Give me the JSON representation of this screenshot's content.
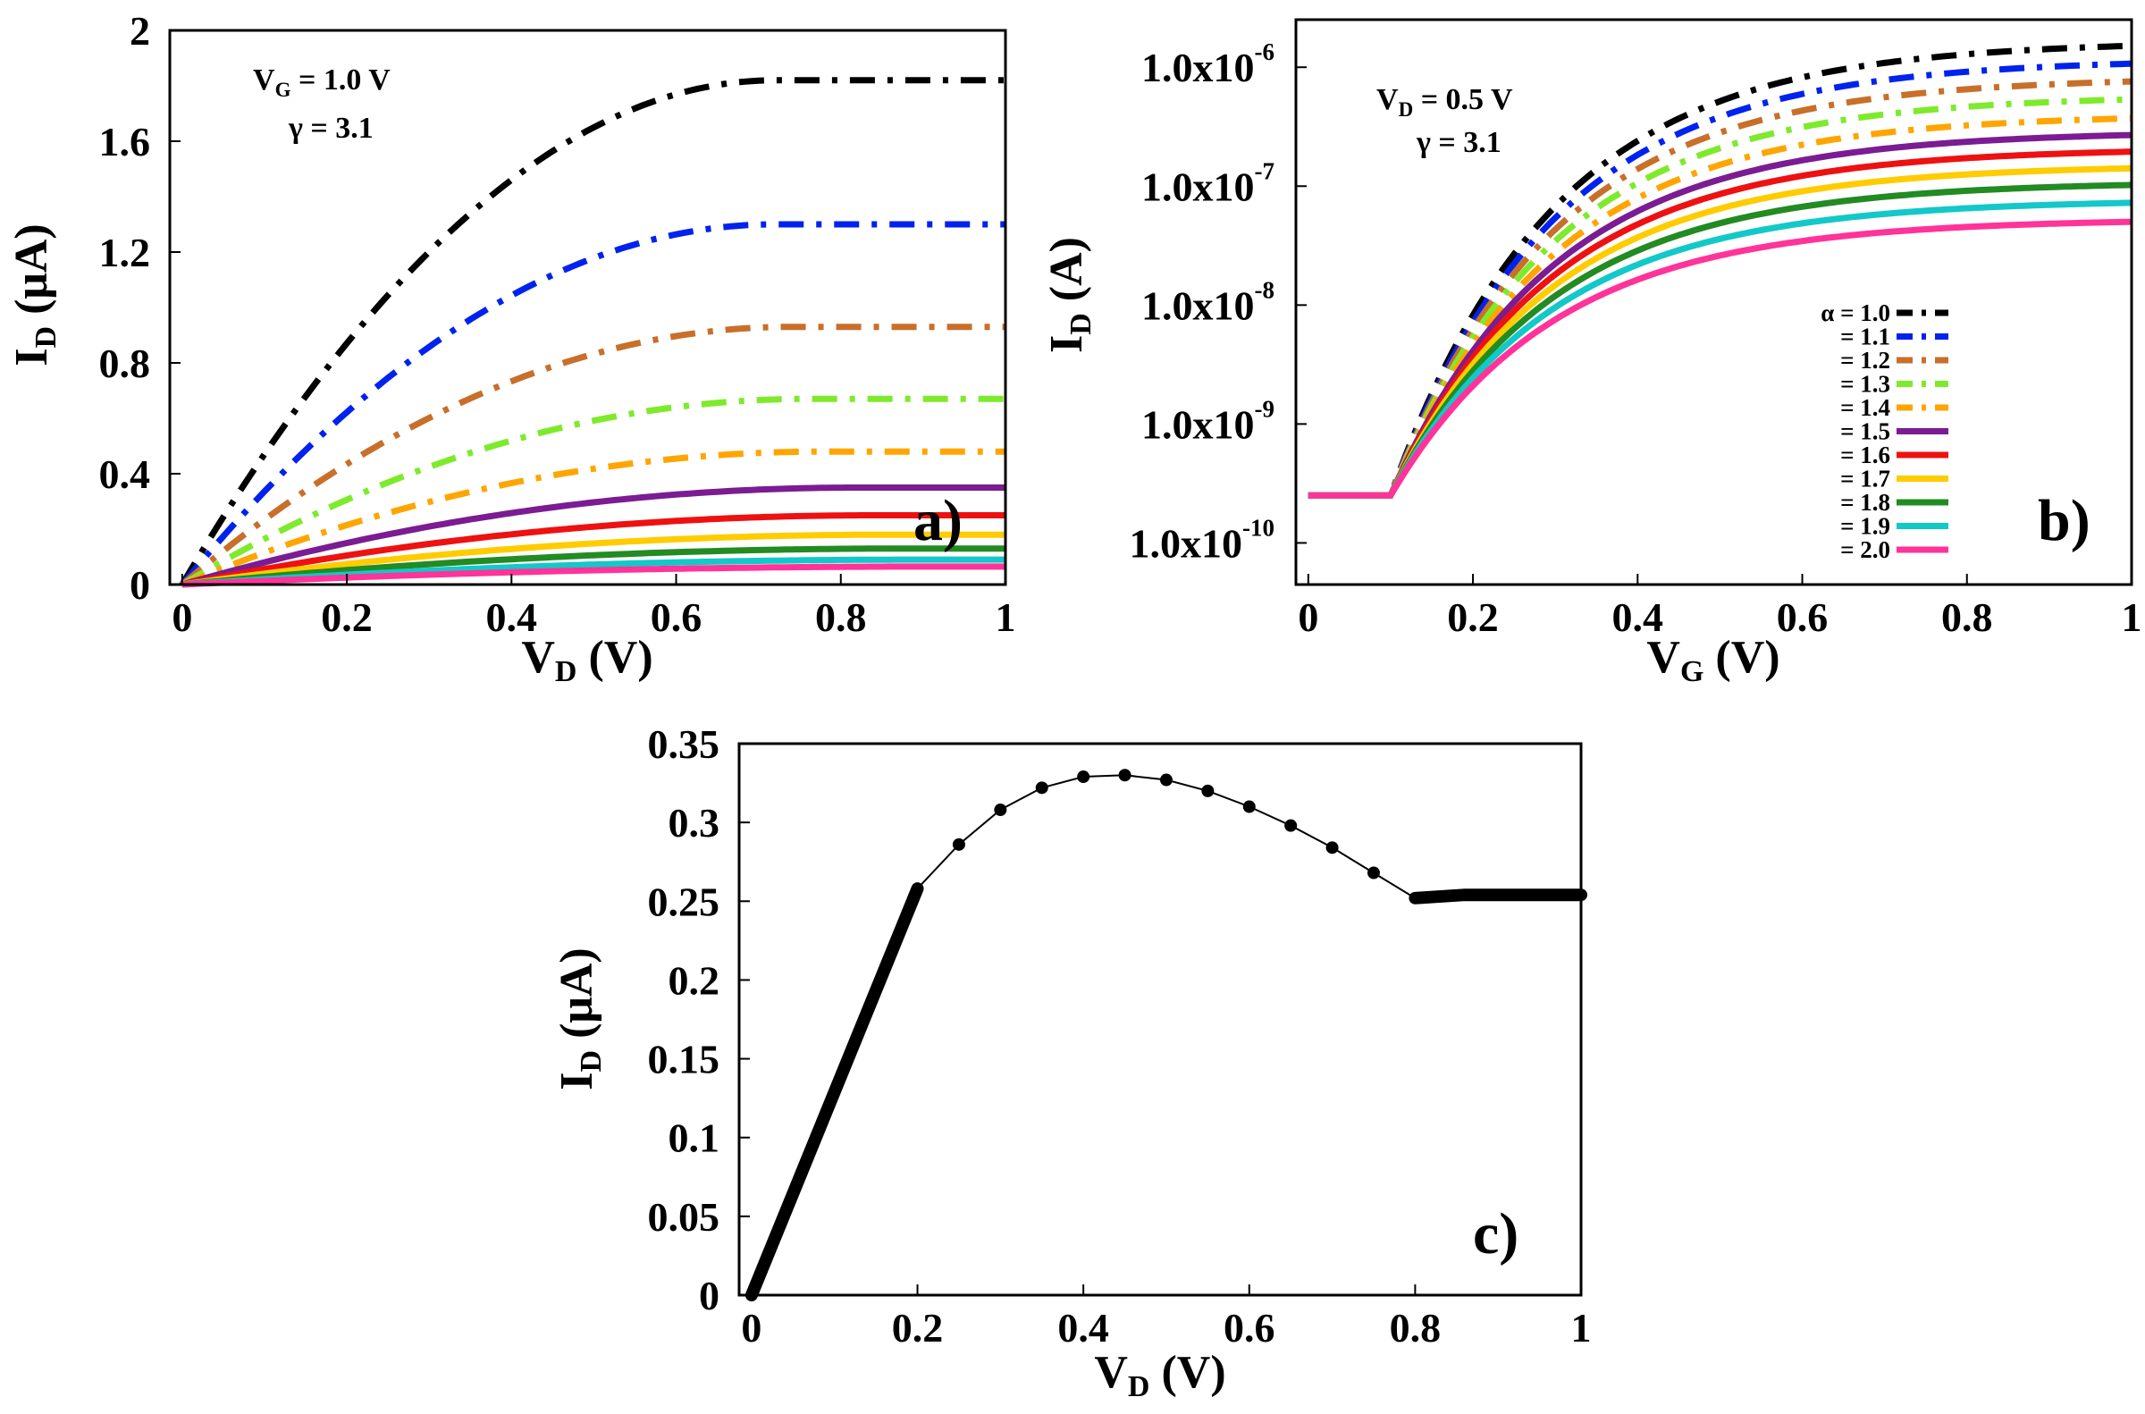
{
  "figure_tags": {
    "a": "a)",
    "b": "b)",
    "c": "c)"
  },
  "alpha_symbol": "α",
  "chart_data": [
    {
      "id": "a",
      "type": "line",
      "xlabel": {
        "main": "V",
        "sub": "D",
        "rest": " (V)"
      },
      "ylabel": {
        "main": "I",
        "sub": "D",
        "rest": " (μA)"
      },
      "annotation": {
        "line1_main": "V",
        "line1_sub": "G",
        "line1_rest": " = 1.0 V",
        "line2": "γ = 3.1"
      },
      "xlim": [
        -0.015,
        1
      ],
      "ylim": [
        0,
        2
      ],
      "xticks": [
        0,
        0.2,
        0.4,
        0.6,
        0.8,
        1
      ],
      "xtick_labels": [
        "0",
        "0.2",
        "0.4",
        "0.6",
        "0.8",
        "1"
      ],
      "yticks": [
        0,
        0.4,
        0.8,
        1.2,
        1.6,
        2
      ],
      "ytick_labels": [
        "0",
        "0.4",
        "0.8",
        "1.2",
        "1.6",
        "2"
      ],
      "series": [
        {
          "name": "α = 1.0",
          "color": "#000000",
          "style": "dashdot",
          "sat": 1.82,
          "vsat": 0.72
        },
        {
          "name": "= 1.1",
          "color": "#0022ee",
          "style": "dashdot",
          "sat": 1.3,
          "vsat": 0.72
        },
        {
          "name": "= 1.2",
          "color": "#c86f2a",
          "style": "dashdot",
          "sat": 0.93,
          "vsat": 0.74
        },
        {
          "name": "= 1.3",
          "color": "#7eea2c",
          "style": "dashdot",
          "sat": 0.67,
          "vsat": 0.76
        },
        {
          "name": "= 1.4",
          "color": "#ffa500",
          "style": "dashdot",
          "sat": 0.48,
          "vsat": 0.78
        },
        {
          "name": "= 1.5",
          "color": "#7b1c92",
          "style": "solid",
          "sat": 0.35,
          "vsat": 0.82
        },
        {
          "name": "= 1.6",
          "color": "#ee1111",
          "style": "solid",
          "sat": 0.25,
          "vsat": 0.84
        },
        {
          "name": "= 1.7",
          "color": "#ffcc00",
          "style": "solid",
          "sat": 0.18,
          "vsat": 0.86
        },
        {
          "name": "= 1.8",
          "color": "#228b22",
          "style": "solid",
          "sat": 0.13,
          "vsat": 0.88
        },
        {
          "name": "= 1.9",
          "color": "#13c8c8",
          "style": "solid",
          "sat": 0.09,
          "vsat": 0.9
        },
        {
          "name": "= 2.0",
          "color": "#ff3399",
          "style": "solid",
          "sat": 0.065,
          "vsat": 0.92
        }
      ]
    },
    {
      "id": "b",
      "type": "line",
      "yscale": "log",
      "xlabel": {
        "main": "V",
        "sub": "G",
        "rest": " (V)"
      },
      "ylabel": {
        "main": "I",
        "sub": "D",
        "rest": " (A)"
      },
      "annotation": {
        "line1_main": "V",
        "line1_sub": "D",
        "line1_rest": " = 0.5 V",
        "line2": "γ = 3.1"
      },
      "xlim": [
        -0.015,
        1
      ],
      "ylim_log10": [
        -10.35,
        -5.6
      ],
      "xticks": [
        0,
        0.2,
        0.4,
        0.6,
        0.8,
        1
      ],
      "xtick_labels": [
        "0",
        "0.2",
        "0.4",
        "0.6",
        "0.8",
        "1"
      ],
      "yticks_log10": [
        -10,
        -9,
        -8,
        -7,
        -6
      ],
      "ytick_mantissa": "1.0x10",
      "ytick_exponents": [
        "-10",
        "-9",
        "-8",
        "-7",
        "-6"
      ],
      "offstate_log10": -9.6,
      "threshold_v": 0.1,
      "series": [
        {
          "name": "α = 1.0",
          "color": "#000000",
          "style": "dashdot",
          "end_log10": -5.82
        },
        {
          "name": "= 1.1",
          "color": "#0022ee",
          "style": "dashdot",
          "end_log10": -5.97
        },
        {
          "name": "= 1.2",
          "color": "#c86f2a",
          "style": "dashdot",
          "end_log10": -6.12
        },
        {
          "name": "= 1.3",
          "color": "#7eea2c",
          "style": "dashdot",
          "end_log10": -6.27
        },
        {
          "name": "= 1.4",
          "color": "#ffa500",
          "style": "dashdot",
          "end_log10": -6.43
        },
        {
          "name": "= 1.5",
          "color": "#7b1c92",
          "style": "solid",
          "end_log10": -6.57
        },
        {
          "name": "= 1.6",
          "color": "#ee1111",
          "style": "solid",
          "end_log10": -6.71
        },
        {
          "name": "= 1.7",
          "color": "#ffcc00",
          "style": "solid",
          "end_log10": -6.85
        },
        {
          "name": "= 1.8",
          "color": "#228b22",
          "style": "solid",
          "end_log10": -6.99
        },
        {
          "name": "= 1.9",
          "color": "#13c8c8",
          "style": "solid",
          "end_log10": -7.14
        },
        {
          "name": "= 2.0",
          "color": "#ff3399",
          "style": "solid",
          "end_log10": -7.3
        }
      ],
      "legend_position": "right"
    },
    {
      "id": "c",
      "type": "scatter",
      "xlabel": {
        "main": "V",
        "sub": "D",
        "rest": " (V)"
      },
      "ylabel": {
        "main": "I",
        "sub": "D",
        "rest": " (μA)"
      },
      "xlim": [
        -0.015,
        1
      ],
      "ylim": [
        0,
        0.35
      ],
      "xticks": [
        0,
        0.2,
        0.4,
        0.6,
        0.8,
        1
      ],
      "xtick_labels": [
        "0",
        "0.2",
        "0.4",
        "0.6",
        "0.8",
        "1"
      ],
      "yticks": [
        0,
        0.05,
        0.1,
        0.15,
        0.2,
        0.25,
        0.3,
        0.35
      ],
      "ytick_labels": [
        "0",
        "0.05",
        "0.1",
        "0.15",
        "0.2",
        "0.25",
        "0.3",
        "0.35"
      ],
      "linear_region": {
        "x": [
          0,
          0.2
        ],
        "y": [
          0,
          0.258
        ]
      },
      "points": {
        "x": [
          0.25,
          0.3,
          0.35,
          0.4,
          0.45,
          0.5,
          0.55,
          0.6,
          0.65,
          0.7,
          0.75
        ],
        "y": [
          0.286,
          0.308,
          0.322,
          0.329,
          0.33,
          0.327,
          0.32,
          0.31,
          0.298,
          0.284,
          0.268
        ]
      },
      "saturation_region": {
        "x": [
          0.8,
          1.0
        ],
        "y": [
          0.252,
          0.254
        ]
      }
    }
  ]
}
